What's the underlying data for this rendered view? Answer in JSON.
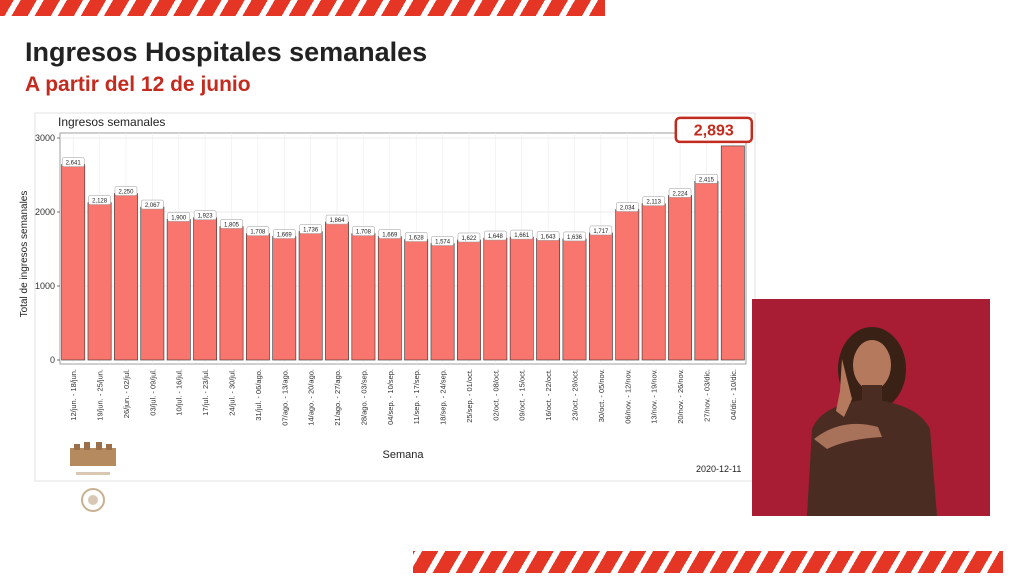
{
  "header": {
    "title": "Ingresos Hospitales semanales",
    "subtitle": "A partir del 12 de junio"
  },
  "chart_data": {
    "type": "bar",
    "title": "Ingresos semanales",
    "xlabel": "Semana",
    "ylabel": "Total de ingresos semanales",
    "ylim": [
      0,
      3000
    ],
    "yticks": [
      0,
      1000,
      2000,
      3000
    ],
    "grid": true,
    "bar_color": "#f8766d",
    "categories": [
      "12/jun. - 18/jun.",
      "19/jun. - 25/jun.",
      "26/jun. - 02/jul.",
      "03/jul. - 09/jul.",
      "10/jul. - 16/jul.",
      "17/jul. - 23/jul.",
      "24/jul. - 30/jul.",
      "31/jul. - 06/ago.",
      "07/ago. - 13/ago.",
      "14/ago. - 20/ago.",
      "21/ago. - 27/ago.",
      "28/ago. - 03/sep.",
      "04/sep. - 10/sep.",
      "11/sep. - 17/sep.",
      "18/sep. - 24/sep.",
      "25/sep. - 01/oct.",
      "02/oct. - 08/oct.",
      "09/oct. - 15/oct.",
      "16/oct. - 22/oct.",
      "23/oct. - 29/oct.",
      "30/oct. - 05/nov.",
      "06/nov. - 12/nov.",
      "13/nov. - 19/nov.",
      "20/nov. - 26/nov.",
      "27/nov. - 03/dic.",
      "04/dic. - 10/dic."
    ],
    "values": [
      2641,
      2128,
      2250,
      2067,
      1900,
      1923,
      1805,
      1708,
      1669,
      1736,
      1864,
      1708,
      1669,
      1628,
      1574,
      1622,
      1648,
      1661,
      1643,
      1636,
      1717,
      2034,
      2113,
      2224,
      2415,
      2893
    ],
    "labels": [
      "2,641",
      "2,128",
      "2,250",
      "2,067",
      "1,900",
      "1,923",
      "1,805",
      "1,708",
      "1,669",
      "1,736",
      "1,864",
      "1,708",
      "1,669",
      "1,628",
      "1,574",
      "1,622",
      "1,648",
      "1,661",
      "1,643",
      "1,636",
      "1,717",
      "2,034",
      "2,113",
      "2,224",
      "2,415"
    ],
    "highlight": {
      "label": "2,893",
      "color": "#c32b1e"
    },
    "date_note": "2020-12-11"
  }
}
